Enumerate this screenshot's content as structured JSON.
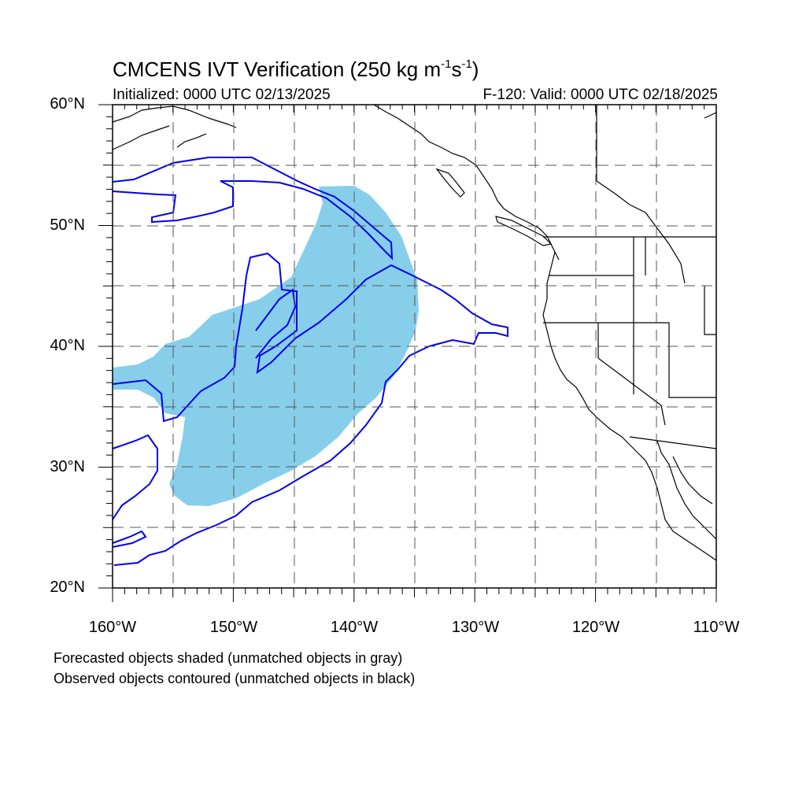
{
  "title": {
    "main": "CMCENS IVT Verification (250 kg m",
    "exp1": "-1",
    "mid": "s",
    "exp2": "-1",
    "end": ")"
  },
  "initialized": "Initialized: 0000 UTC 02/13/2025",
  "valid": "F-120: Valid: 0000 UTC 02/18/2025",
  "lat_labels": [
    "60°N",
    "50°N",
    "40°N",
    "30°N",
    "20°N"
  ],
  "lon_labels": [
    "160°W",
    "150°W",
    "140°W",
    "130°W",
    "120°W",
    "110°W"
  ],
  "notes": {
    "line1": "Forecasted objects shaded (unmatched objects in gray)",
    "line2": "Observed objects contoured (unmatched objects in black)"
  },
  "colors": {
    "forecast_fill": "#87ceeb",
    "observed_contour": "#0000ee",
    "coastline": "#000000",
    "grid": "#555555"
  }
}
